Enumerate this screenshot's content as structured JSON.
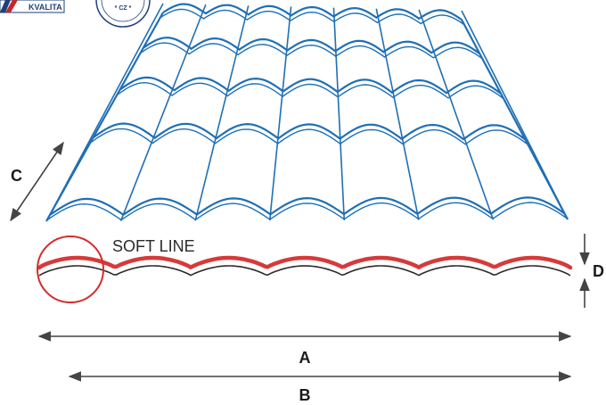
{
  "badge": {
    "text": "KVALITA",
    "seal_text": "CZ",
    "seal_stars": "* CZ *"
  },
  "profile_label": "SOFT LINE",
  "dimensions": {
    "a": "A",
    "b": "B",
    "c": "C",
    "d": "D"
  },
  "colors": {
    "tile_outline": "#1f6fb5",
    "tile_fill": "#ffffff",
    "profile_top": "#d63a3a",
    "profile_bottom": "#2b2b2b",
    "circle": "#d62b2b",
    "arrow": "#444444",
    "badge_red": "#c8242b",
    "badge_blue": "#1f3f7a"
  }
}
